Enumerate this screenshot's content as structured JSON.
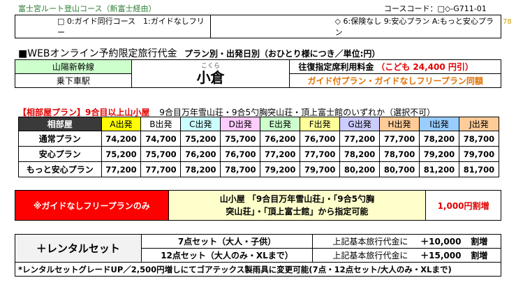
{
  "header": {
    "course_title": "富士宮ルート登山コース（新富士経由）",
    "course_code": "コースコード：□◇-G711-01",
    "legend_left": "□ 0:ガイド同行コース　1:ガイドなしフリー",
    "legend_right": "◇ 6:保険なし 9:安心プラン A:もっと安心プラン",
    "page_number": "78"
  },
  "pricing_title": {
    "main": "■WEBオンライン予約限定旅行代金",
    "sub": "プラン別・出発日別（おひとり様につき／単位:円）"
  },
  "station": {
    "line_label": "山陽新幹線",
    "station_label": "乗下車駅",
    "furigana": "こくら",
    "name": "小倉",
    "reserved_label": "往復指定席利用料金",
    "child_fare": "（こども 24,400 円引）",
    "same_price_note": "ガイド付プラン・ガイドなしフリープラン同額"
  },
  "lodge": {
    "title": "【相部屋プラン】9合目以上山小屋",
    "desc": "9合目万年雪山荘・9合5勺胸突山荘・頂上富士館のいずれか（選択不可）"
  },
  "fare_table": {
    "corner": "相部屋",
    "columns": [
      {
        "label": "A出発",
        "color": "#ffff00"
      },
      {
        "label": "B出発",
        "color": "#ffffff"
      },
      {
        "label": "C出発",
        "color": "#ccffff"
      },
      {
        "label": "D出発",
        "color": "#ffccff"
      },
      {
        "label": "E出発",
        "color": "#ccffcc"
      },
      {
        "label": "F出発",
        "color": "#ffff99"
      },
      {
        "label": "G出発",
        "color": "#ccccff"
      },
      {
        "label": "H出発",
        "color": "#ffcc99"
      },
      {
        "label": "I出発",
        "color": "#99ccff"
      },
      {
        "label": "J出発",
        "color": "#ffcc99"
      }
    ],
    "rows": [
      {
        "label": "通常プラン",
        "values": [
          "74,200",
          "74,700",
          "75,200",
          "75,700",
          "76,200",
          "76,700",
          "77,200",
          "77,700",
          "78,200",
          "78,700"
        ]
      },
      {
        "label": "安心プラン",
        "values": [
          "75,200",
          "75,700",
          "76,200",
          "76,700",
          "77,200",
          "77,700",
          "78,200",
          "78,700",
          "79,200",
          "79,700"
        ]
      },
      {
        "label": "もっと安心プラン",
        "values": [
          "77,200",
          "77,700",
          "78,200",
          "78,700",
          "79,200",
          "79,700",
          "80,200",
          "80,700",
          "81,200",
          "81,700"
        ]
      }
    ]
  },
  "guide_free": {
    "label": "※ガイドなしフリープランのみ",
    "desc_line1": "山小屋 「9合目万年雪山荘」・「9合5勺胸",
    "desc_line2": "突山荘」・「頂上富士館」から指定可能",
    "surcharge": "1,000円割増"
  },
  "rental": {
    "label": "＋レンタルセット",
    "sets": [
      {
        "name": "7点セット（大人・子供）",
        "base": "上記基本旅行代金に",
        "amount": "＋10,000",
        "unit": "割増"
      },
      {
        "name": "12点セット（大人のみ・XLまで）",
        "base": "上記基本旅行代金に",
        "amount": "＋15,000",
        "unit": "割増"
      }
    ],
    "note": "*レンタルセットグレードUP／2,500円増しにてゴアテックス製雨具に変更可能(7点・12点セット/大人のみ・XLまで)"
  }
}
